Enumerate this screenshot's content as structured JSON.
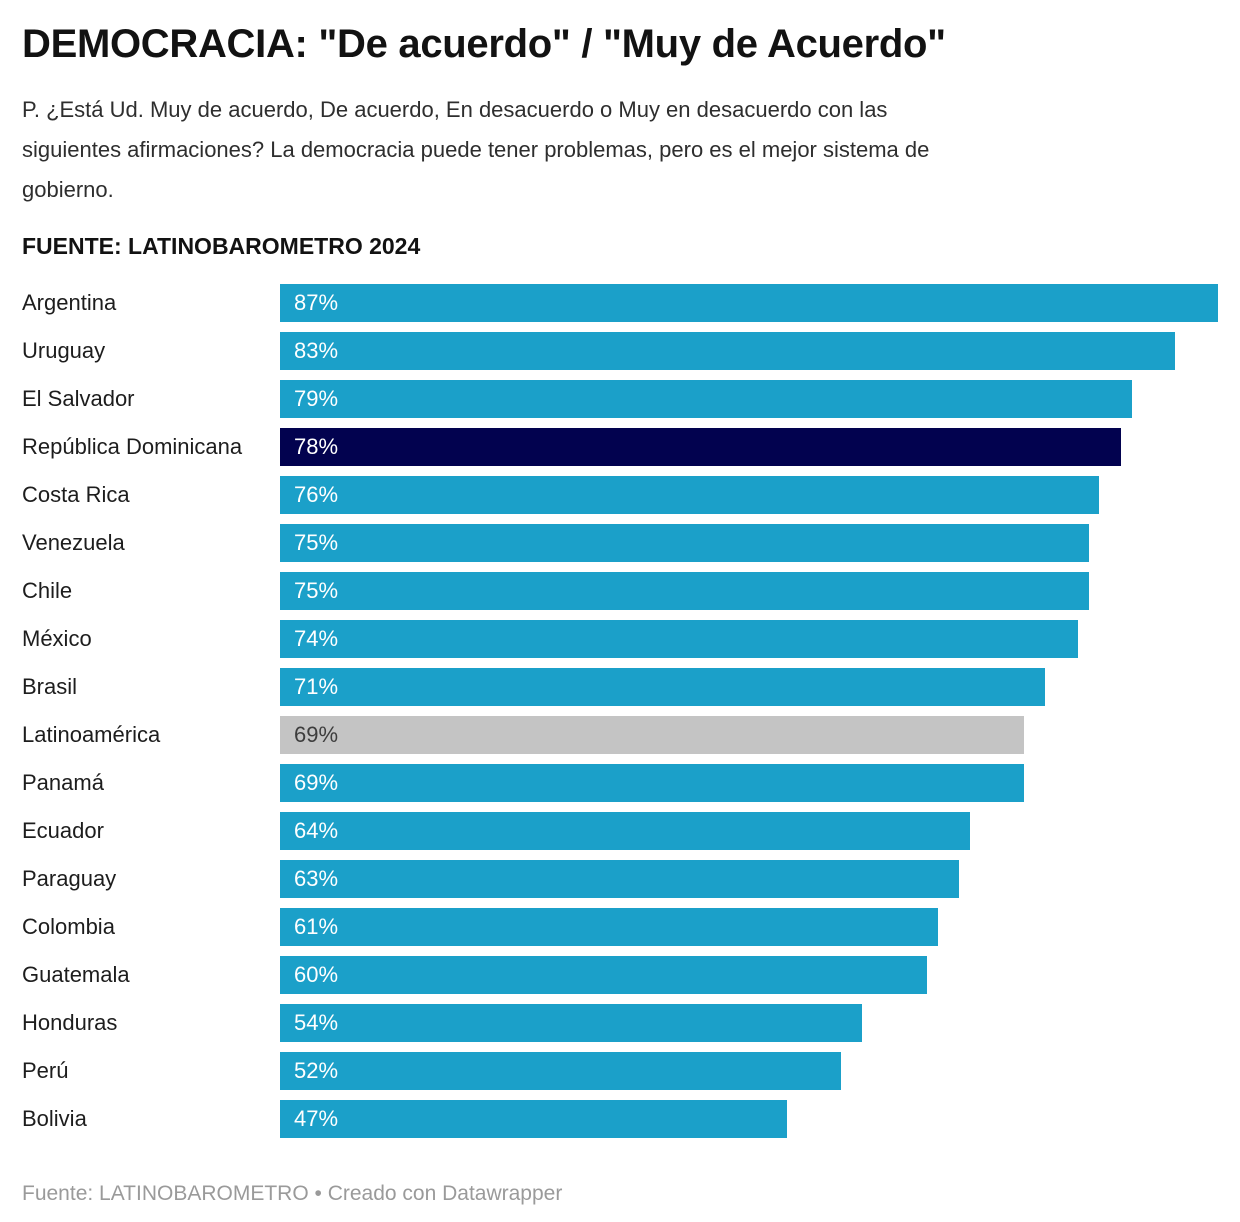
{
  "header": {
    "title": "DEMOCRACIA: \"De acuerdo\" / \"Muy de Acuerdo\"",
    "description_lines": [
      "P. ¿Está Ud. Muy de acuerdo, De acuerdo, En desacuerdo o Muy en desacuerdo con las",
      "siguientes afirmaciones? La democracia puede tener problemas, pero es el mejor sistema de",
      "gobierno."
    ],
    "source_heading": "FUENTE: LATINOBAROMETRO 2024"
  },
  "footer": {
    "credit": "Fuente: LATINOBAROMETRO • Creado con Datawrapper"
  },
  "colors": {
    "bar_default": "#1BA0C9",
    "bar_highlight": "#02024F",
    "bar_neutral": "#C4C4C4",
    "value_on_bar": "#FFFFFF",
    "value_on_neutral": "#3D3D3D"
  },
  "chart_data": {
    "type": "bar",
    "orientation": "horizontal",
    "title": "DEMOCRACIA: \"De acuerdo\" / \"Muy de Acuerdo\"",
    "source": "LATINOBAROMETRO 2024",
    "value_suffix": "%",
    "xlim": [
      0,
      87
    ],
    "grid": false,
    "legend": false,
    "value_labels": "inside-start",
    "categories": [
      "Argentina",
      "Uruguay",
      "El Salvador",
      "República Dominicana",
      "Costa Rica",
      "Venezuela",
      "Chile",
      "México",
      "Brasil",
      "Latinoamérica",
      "Panamá",
      "Ecuador",
      "Paraguay",
      "Colombia",
      "Guatemala",
      "Honduras",
      "Perú",
      "Bolivia"
    ],
    "values": [
      87,
      83,
      79,
      78,
      76,
      75,
      75,
      74,
      71,
      69,
      69,
      64,
      63,
      61,
      60,
      54,
      52,
      47
    ],
    "bar_roles": [
      "default",
      "default",
      "default",
      "highlight",
      "default",
      "default",
      "default",
      "default",
      "default",
      "neutral",
      "default",
      "default",
      "default",
      "default",
      "default",
      "default",
      "default",
      "default"
    ]
  }
}
